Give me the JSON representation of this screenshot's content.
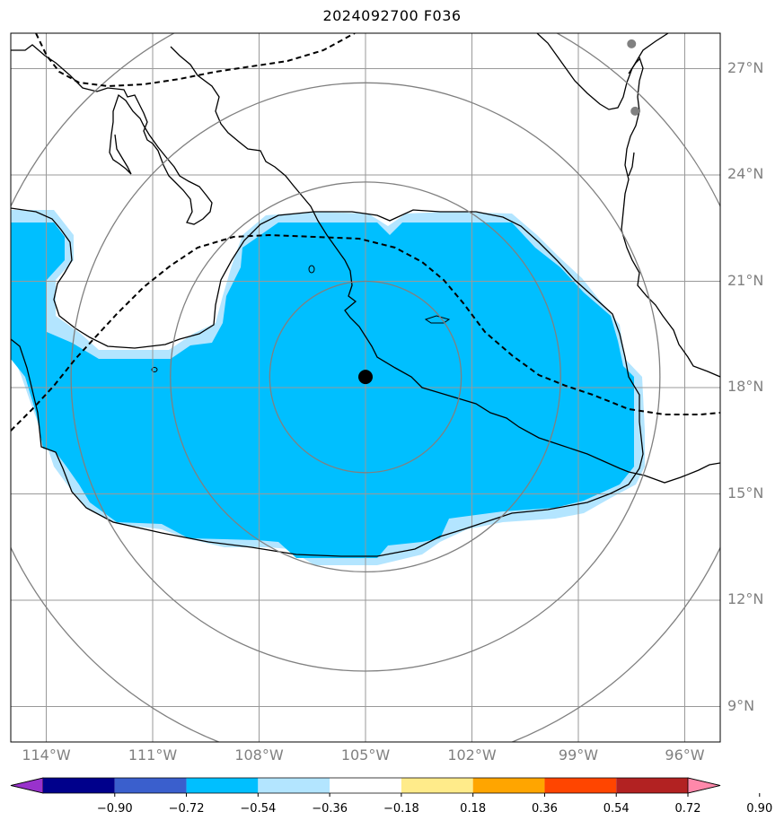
{
  "title": "2024092700 F036",
  "map": {
    "lon_labels": [
      "114°W",
      "111°W",
      "108°W",
      "105°W",
      "102°W",
      "99°W",
      "96°W"
    ],
    "lon_values": [
      -114,
      -111,
      -108,
      -105,
      -102,
      -99,
      -96
    ],
    "lat_labels": [
      "27°N",
      "24°N",
      "21°N",
      "18°N",
      "15°N",
      "12°N",
      "9°N"
    ],
    "lat_values": [
      27,
      24,
      21,
      18,
      15,
      12,
      9
    ],
    "storm_center": {
      "lon": -105.0,
      "lat": 18.3
    },
    "range_rings_deg": [
      2.7,
      5.5,
      8.3,
      11.1
    ],
    "observation_sites": [
      {
        "lon": -97.5,
        "lat": 27.7
      },
      {
        "lon": -97.4,
        "lat": 25.8
      }
    ],
    "shaded_field_value": "-0.54 to -0.36",
    "colors": {
      "shade_main": "#00bfff",
      "shade_edge": "#b3e5ff",
      "coast": "#000000",
      "grid": "#999999",
      "rings": "#808080",
      "dashed_contour": "#000000",
      "storm": "#000000",
      "sites": "#808080"
    }
  },
  "colorbar": {
    "ticks": [
      "−0.90",
      "−0.72",
      "−0.54",
      "−0.36",
      "−0.18",
      "0.18",
      "0.36",
      "0.54",
      "0.72",
      "0.90"
    ],
    "colors": [
      "#9932cc",
      "#00008b",
      "#3a5fcd",
      "#00bfff",
      "#b3e5ff",
      "#ffffff",
      "#ffeb8a",
      "#ffa500",
      "#ff4500",
      "#b22222",
      "#ff88aa"
    ]
  }
}
